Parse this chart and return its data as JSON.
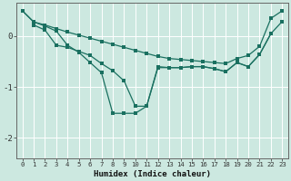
{
  "xlabel": "Humidex (Indice chaleur)",
  "background_color": "#cce8e0",
  "grid_color": "#b0d8d0",
  "line_color": "#1a7060",
  "xlim": [
    -0.5,
    23.5
  ],
  "ylim": [
    -2.4,
    0.65
  ],
  "yticks": [
    0,
    -1,
    -2
  ],
  "xticks": [
    0,
    1,
    2,
    3,
    4,
    5,
    6,
    7,
    8,
    9,
    10,
    11,
    12,
    13,
    14,
    15,
    16,
    17,
    18,
    19,
    20,
    21,
    22,
    23
  ],
  "line1_x": [
    0,
    1,
    2,
    3,
    4,
    5,
    6,
    7,
    8,
    9,
    10,
    11,
    12,
    13,
    14,
    15,
    16,
    17,
    18,
    19,
    20,
    21,
    22,
    23
  ],
  "line1_y": [
    0.5,
    0.28,
    0.22,
    0.15,
    0.08,
    0.02,
    -0.04,
    -0.1,
    -0.16,
    -0.22,
    -0.28,
    -0.34,
    -0.4,
    -0.44,
    -0.46,
    -0.48,
    -0.5,
    -0.52,
    -0.54,
    -0.44,
    -0.38,
    -0.2,
    0.35,
    0.5
  ],
  "line2_x": [
    0,
    1,
    2,
    3,
    4,
    5,
    6,
    7,
    8,
    9,
    10,
    11,
    12,
    13,
    14,
    15,
    16,
    17,
    18,
    19,
    20,
    21,
    22,
    23
  ],
  "line2_y": [
    0.5,
    0.28,
    0.2,
    0.1,
    -0.18,
    -0.32,
    -0.52,
    -0.72,
    -1.52,
    -1.52,
    -1.52,
    -1.38,
    -0.6,
    -0.62,
    -0.62,
    -0.6,
    -0.6,
    -0.64,
    -0.7,
    -0.52,
    -0.6,
    -0.36,
    0.05,
    0.29
  ],
  "line3_x": [
    1,
    2,
    3,
    4,
    5,
    6,
    7,
    8,
    9,
    10,
    11,
    12,
    13,
    14,
    15,
    16,
    17,
    18,
    19,
    20,
    21,
    22
  ],
  "line3_y": [
    0.22,
    0.12,
    -0.18,
    -0.22,
    -0.3,
    -0.38,
    -0.54,
    -0.68,
    -0.88,
    -1.38,
    -1.38,
    -0.62,
    -0.62,
    -0.62,
    -0.6,
    -0.6,
    -0.64,
    -0.7,
    -0.52,
    -0.6,
    -0.36,
    0.05
  ]
}
